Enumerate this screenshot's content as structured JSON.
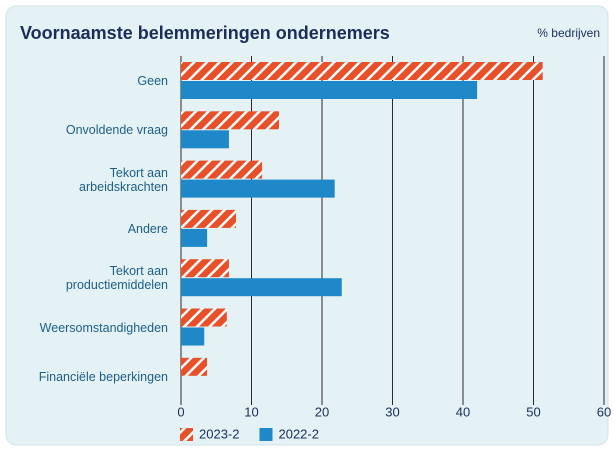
{
  "chart_data": {
    "type": "bar",
    "orientation": "horizontal",
    "title": "Voornaamste belemmeringen ondernemers",
    "xlabel": "% bedrijven",
    "categories": [
      "Geen",
      "Onvoldende vraag",
      "Tekort aan\narbeidskrachten",
      "Andere",
      "Tekort aan\nproductiemiddelen",
      "Weersomstandigheden",
      "Financiële beperkingen"
    ],
    "series": [
      {
        "name": "2023-2",
        "color": "#e8502a",
        "hatch": true,
        "values": [
          51.3,
          13.9,
          11.5,
          7.8,
          6.8,
          6.5,
          3.7
        ]
      },
      {
        "name": "2022-2",
        "color": "#1e88c8",
        "hatch": false,
        "values": [
          42.0,
          6.8,
          21.8,
          3.7,
          22.8,
          3.3,
          null
        ]
      }
    ],
    "xlim": [
      0,
      60
    ],
    "xticks": [
      0,
      10,
      20,
      30,
      40,
      50,
      60
    ],
    "grid": true
  }
}
